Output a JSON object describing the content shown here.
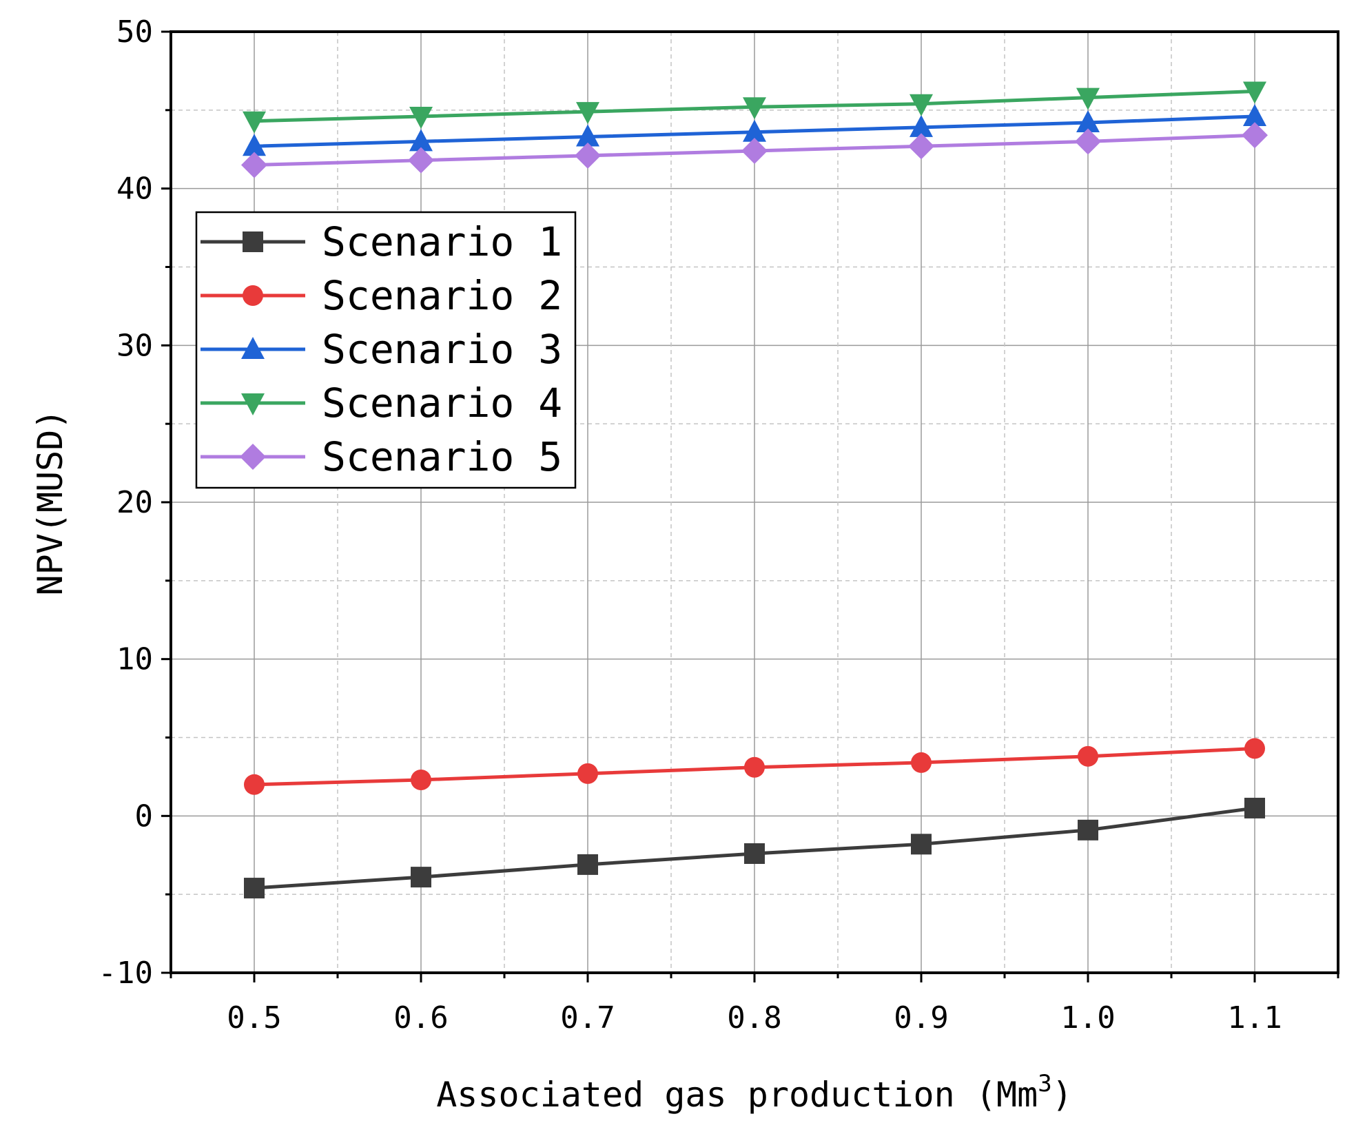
{
  "chart_data": {
    "type": "line",
    "title": "",
    "xlabel": "Associated gas production (Mm",
    "xlabel_superscript": "3",
    "xlabel_close": ")",
    "ylabel": "NPV(MUSD)",
    "x": [
      0.5,
      0.6,
      0.7,
      0.8,
      0.9,
      1.0,
      1.1
    ],
    "x_tick_labels": [
      "0.5",
      "0.6",
      "0.7",
      "0.8",
      "0.9",
      "1.0",
      "1.1"
    ],
    "y_ticks": [
      -10,
      0,
      10,
      20,
      30,
      40,
      50
    ],
    "y_tick_labels": [
      "-10",
      "0",
      "10",
      "20",
      "30",
      "40",
      "50"
    ],
    "xlim": [
      0.45,
      1.15
    ],
    "ylim": [
      -10,
      50
    ],
    "grid": true,
    "legend_position": "left",
    "series": [
      {
        "name": "Scenario 1",
        "color": "#3c3c3c",
        "marker": "square",
        "values": [
          -4.6,
          -3.9,
          -3.1,
          -2.4,
          -1.8,
          -0.9,
          0.5
        ]
      },
      {
        "name": "Scenario 2",
        "color": "#e83a3a",
        "marker": "circle",
        "values": [
          2.0,
          2.3,
          2.7,
          3.1,
          3.4,
          3.8,
          4.3
        ]
      },
      {
        "name": "Scenario 3",
        "color": "#1f63d6",
        "marker": "triangle-up",
        "values": [
          42.7,
          43.0,
          43.3,
          43.6,
          43.9,
          44.2,
          44.6
        ]
      },
      {
        "name": "Scenario 4",
        "color": "#3aa660",
        "marker": "triangle-down",
        "values": [
          44.3,
          44.6,
          44.9,
          45.2,
          45.4,
          45.8,
          46.2
        ]
      },
      {
        "name": "Scenario 5",
        "color": "#b07ce0",
        "marker": "diamond",
        "values": [
          41.5,
          41.8,
          42.1,
          42.4,
          42.7,
          43.0,
          43.4
        ]
      }
    ]
  }
}
